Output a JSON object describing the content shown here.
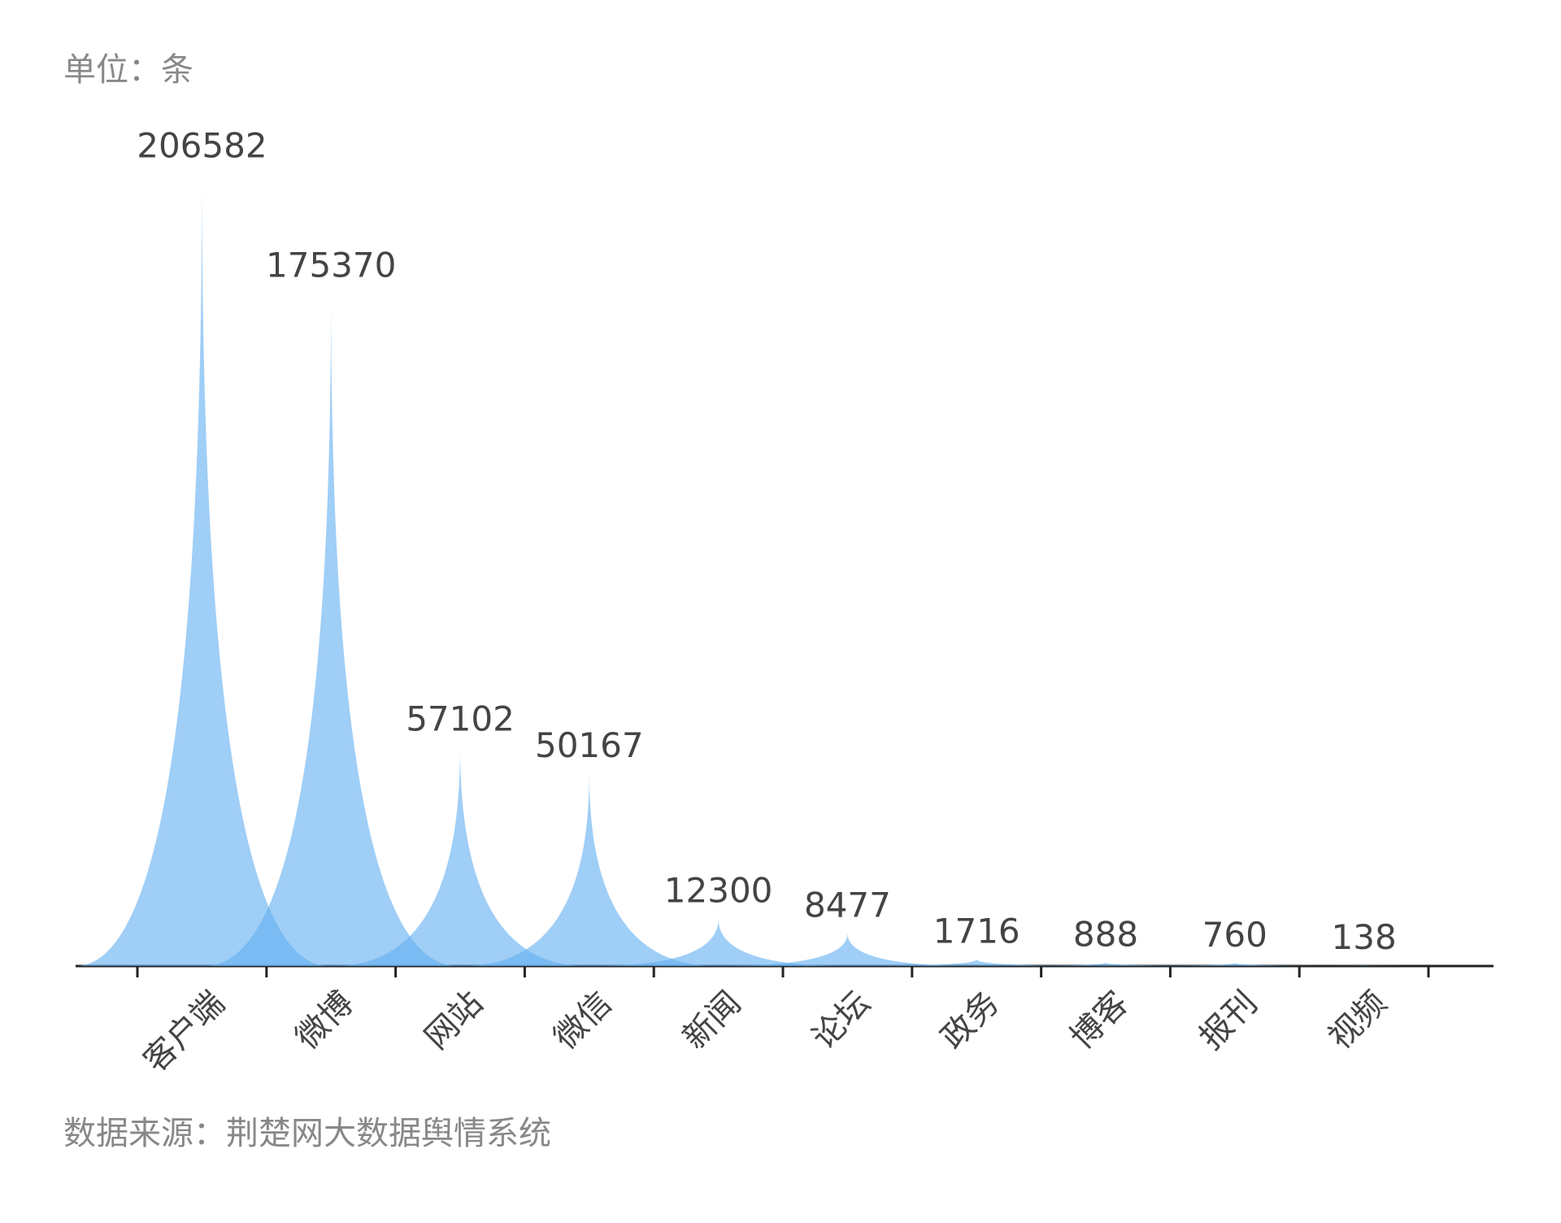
{
  "chart_data": {
    "type": "bar",
    "unit": "单位：条",
    "source": "数据来源：荆楚网大数据舆情系统",
    "categories": [
      "客户端",
      "微博",
      "网站",
      "微信",
      "新闻",
      "论坛",
      "政务",
      "博客",
      "报刊",
      "视频"
    ],
    "values": [
      206582,
      175370,
      57102,
      50167,
      12300,
      8477,
      1716,
      888,
      760,
      138
    ],
    "color": "#64b0f0"
  }
}
